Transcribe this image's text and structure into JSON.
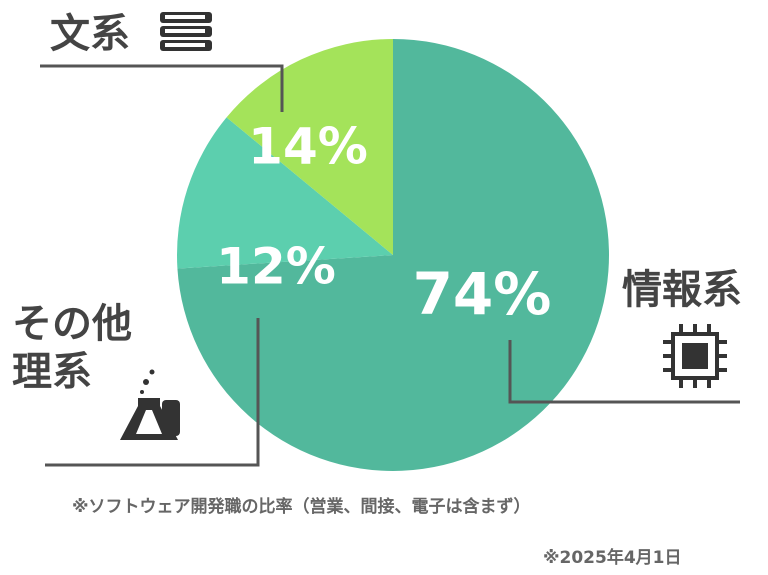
{
  "chart_data": {
    "type": "pie",
    "categories": [
      "情報系",
      "その他理系",
      "文系"
    ],
    "values": [
      74,
      12,
      14
    ],
    "value_labels": [
      "74%",
      "12%",
      "14%"
    ],
    "colors": [
      "#52b89c",
      "#5ccfae",
      "#a4e35a"
    ],
    "note": "※ソフトウェア開発職の比率（営業、間接、電子は含まず）",
    "date": "※2025年4月1日"
  }
}
